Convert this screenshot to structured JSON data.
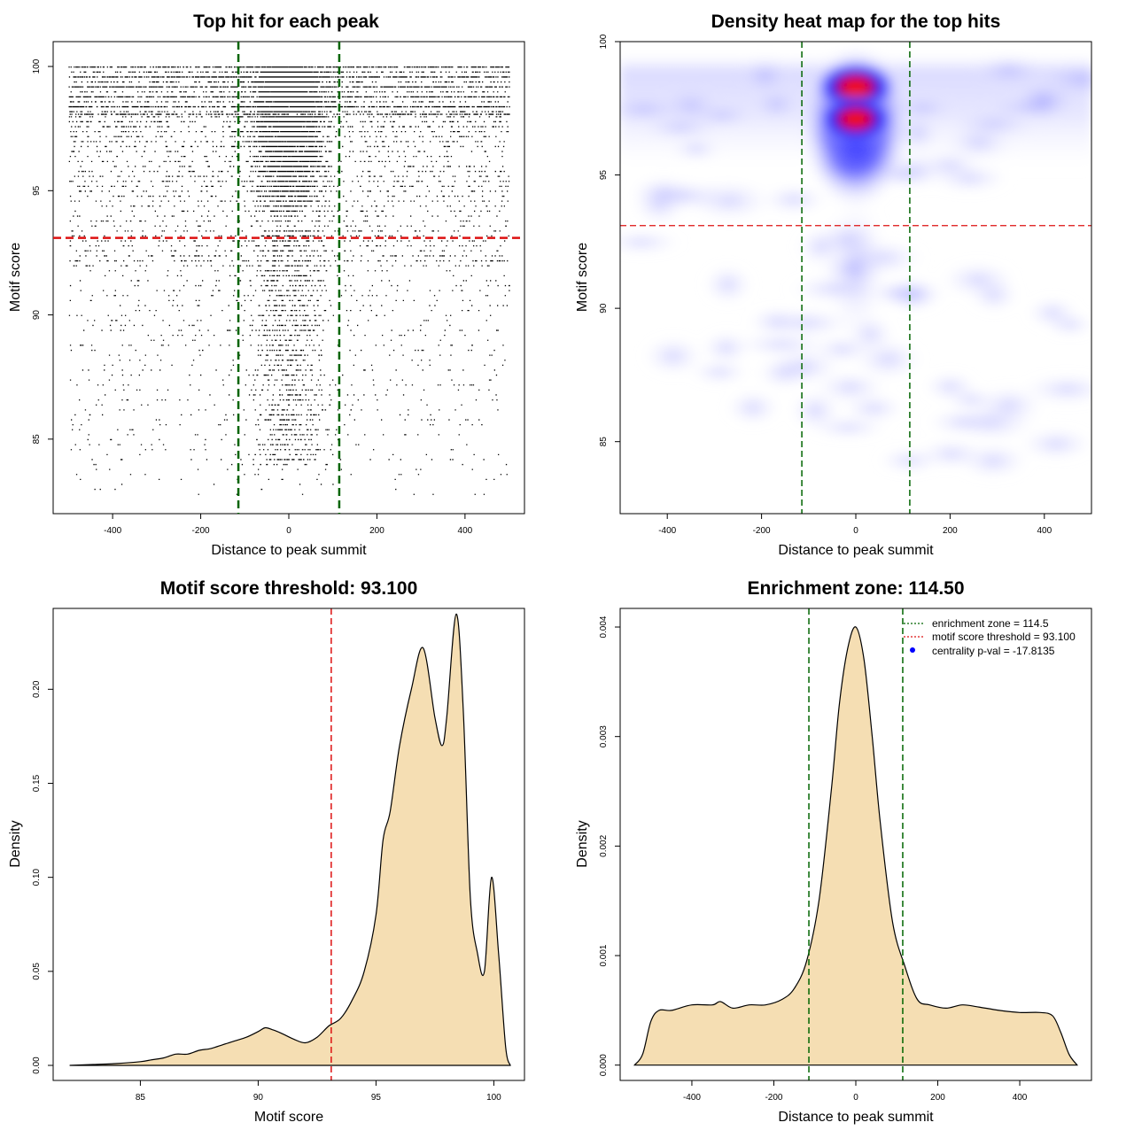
{
  "chart_data": [
    {
      "type": "scatter",
      "title": "Top hit for each peak",
      "xlabel": "Distance to peak summit",
      "ylabel": "Motif score",
      "xlim": [
        -535,
        535
      ],
      "ylim": [
        82,
        101
      ],
      "x_ticks": [
        -400,
        -200,
        0,
        200,
        400
      ],
      "y_ticks": [
        85,
        90,
        95,
        100
      ],
      "vlines": {
        "values": [
          -114.5,
          114.5
        ],
        "color": "#006400",
        "style": "dashed"
      },
      "hline": {
        "value": 93.1,
        "color": "#dd1111",
        "style": "dashed"
      },
      "points_summary": "Dense scatter of top motif hits; x spans -500 to 500, y spans ~82.5 to 100, densest near x=0 and y=95-99",
      "x_range": [
        -500,
        500
      ],
      "y_range": [
        82.5,
        100
      ]
    },
    {
      "type": "heatmap",
      "title": "Density heat map for the top hits",
      "xlabel": "Distance to peak summit",
      "ylabel": "Motif score",
      "xlim": [
        -500,
        500
      ],
      "ylim": [
        82.3,
        100
      ],
      "x_ticks": [
        -400,
        -200,
        0,
        200,
        400
      ],
      "y_ticks": [
        85,
        90,
        95,
        100
      ],
      "colors": [
        "#ffffff",
        "#0000ff",
        "#ff0000"
      ],
      "hotspots": [
        {
          "x": 0,
          "y": 98.3,
          "intensity": 1.0
        },
        {
          "x": 0,
          "y": 97.1,
          "intensity": 0.95
        }
      ],
      "vlines": {
        "values": [
          -114.5,
          114.5
        ],
        "color": "#006400",
        "style": "dashed"
      },
      "hline": {
        "value": 93.1,
        "color": "#dd1111",
        "style": "dashed"
      }
    },
    {
      "type": "area",
      "title": "Motif score threshold: 93.100",
      "xlabel": "Motif score",
      "ylabel": "Density",
      "xlim": [
        81.3,
        101.3
      ],
      "ylim": [
        -0.008,
        0.243
      ],
      "x_ticks": [
        85,
        90,
        95,
        100
      ],
      "y_ticks": [
        0.0,
        0.05,
        0.1,
        0.15,
        0.2
      ],
      "y_tick_labels": [
        "0.00",
        "0.05",
        "0.10",
        "0.15",
        "0.20"
      ],
      "fill_color": "#f5deb3",
      "vline": {
        "value": 93.1,
        "color": "#dd1111",
        "style": "dashed"
      },
      "x": [
        82.0,
        83.0,
        84.0,
        85.0,
        85.5,
        86.0,
        86.5,
        87.0,
        87.5,
        88.0,
        88.5,
        89.0,
        89.5,
        90.0,
        90.3,
        90.6,
        91.0,
        91.5,
        92.0,
        92.5,
        93.0,
        93.5,
        94.0,
        94.5,
        95.0,
        95.3,
        95.6,
        96.0,
        96.5,
        97.0,
        97.5,
        97.8,
        98.0,
        98.4,
        98.7,
        99.0,
        99.3,
        99.6,
        99.9,
        100.2,
        100.5,
        100.7
      ],
      "y": [
        0.0,
        0.0005,
        0.001,
        0.002,
        0.003,
        0.004,
        0.006,
        0.006,
        0.008,
        0.009,
        0.011,
        0.013,
        0.015,
        0.018,
        0.02,
        0.019,
        0.017,
        0.014,
        0.012,
        0.015,
        0.021,
        0.025,
        0.035,
        0.05,
        0.08,
        0.12,
        0.135,
        0.17,
        0.2,
        0.222,
        0.185,
        0.17,
        0.185,
        0.24,
        0.19,
        0.09,
        0.06,
        0.05,
        0.1,
        0.06,
        0.01,
        0.0
      ]
    },
    {
      "type": "area",
      "title": "Enrichment zone: 114.50",
      "xlabel": "Distance to peak summit",
      "ylabel": "Density",
      "xlim": [
        -575,
        575
      ],
      "ylim": [
        -0.00014,
        0.00417
      ],
      "x_ticks": [
        -400,
        -200,
        0,
        200,
        400
      ],
      "y_ticks": [
        0.0,
        0.001,
        0.002,
        0.003,
        0.004
      ],
      "y_tick_labels": [
        "0.000",
        "0.001",
        "0.002",
        "0.003",
        "0.004"
      ],
      "fill_color": "#f5deb3",
      "vlines": {
        "values": [
          -114.5,
          114.5
        ],
        "color": "#006400",
        "style": "dashed"
      },
      "x": [
        -540,
        -520,
        -500,
        -480,
        -450,
        -400,
        -350,
        -330,
        -300,
        -260,
        -220,
        -180,
        -150,
        -120,
        -90,
        -60,
        -40,
        -20,
        0,
        20,
        40,
        60,
        90,
        120,
        150,
        180,
        220,
        260,
        300,
        350,
        400,
        450,
        480,
        500,
        520,
        540
      ],
      "y": [
        0.0,
        0.0001,
        0.0004,
        0.0005,
        0.0005,
        0.00055,
        0.00055,
        0.00058,
        0.00052,
        0.00055,
        0.00055,
        0.0006,
        0.0007,
        0.00095,
        0.0015,
        0.0025,
        0.0033,
        0.0038,
        0.004,
        0.0037,
        0.003,
        0.0022,
        0.0013,
        0.0009,
        0.0006,
        0.00055,
        0.00052,
        0.00055,
        0.00053,
        0.0005,
        0.00048,
        0.00048,
        0.00045,
        0.0003,
        0.0001,
        0.0
      ],
      "legend": {
        "position": "top-right",
        "entries": [
          {
            "label": "enrichment zone = 114.5",
            "color": "#006400",
            "style": "dotted-line"
          },
          {
            "label": "motif score threshold = 93.100",
            "color": "#dd1111",
            "style": "dotted-line"
          },
          {
            "label": "centrality p-val = -17.8135",
            "color": "#0000ff",
            "style": "point"
          }
        ]
      }
    }
  ]
}
